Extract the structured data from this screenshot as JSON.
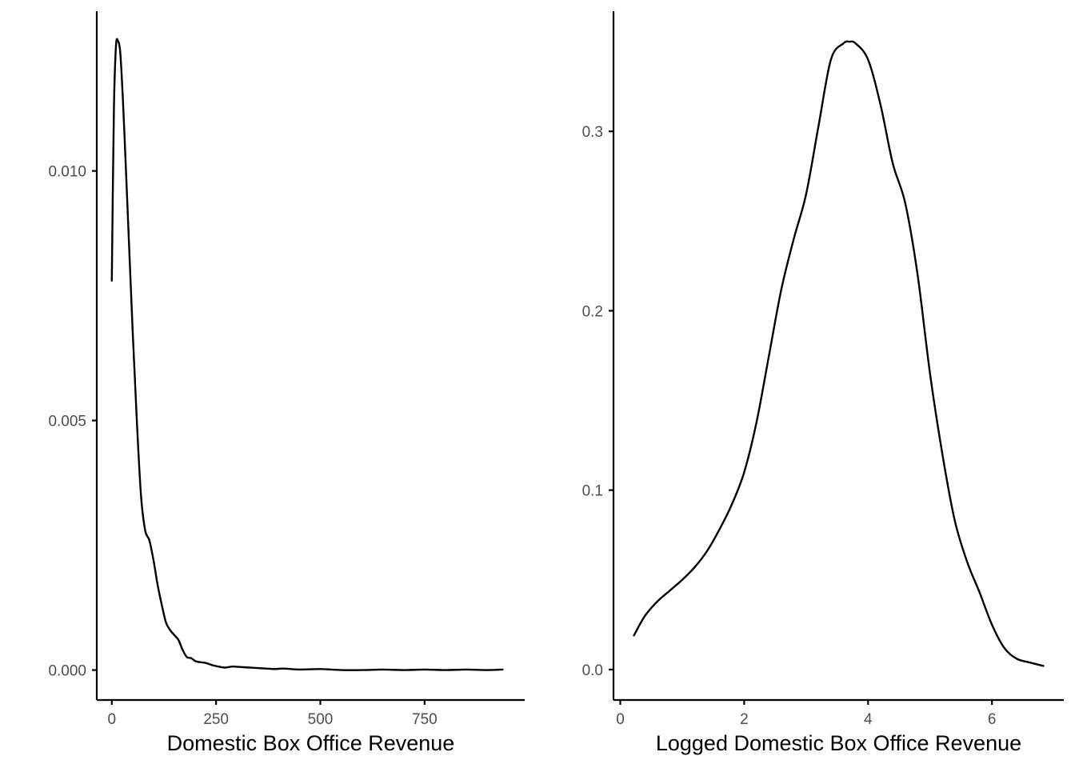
{
  "chart_data": [
    {
      "type": "line",
      "title": "",
      "xlabel": "Domestic Box Office Revenue",
      "ylabel": "",
      "xlim": [
        -36,
        990
      ],
      "ylim": [
        -0.0006,
        0.0132
      ],
      "x_ticks": [
        0,
        250,
        500,
        750
      ],
      "x_tick_labels": [
        "0",
        "250",
        "500",
        "750"
      ],
      "y_ticks": [
        0.0,
        0.005,
        0.01
      ],
      "y_tick_labels": [
        "0.000",
        "0.005",
        "0.010"
      ],
      "grid": false,
      "legend": "none",
      "series": [
        {
          "color": "#000000",
          "x": [
            0,
            5,
            10,
            15,
            20,
            25,
            30,
            40,
            50,
            60,
            70,
            80,
            90,
            100,
            110,
            120,
            130,
            140,
            150,
            160,
            170,
            180,
            190,
            200,
            210,
            220,
            230,
            240,
            250,
            270,
            290,
            310,
            330,
            350,
            370,
            390,
            410,
            430,
            450,
            500,
            550,
            600,
            650,
            700,
            750,
            800,
            850,
            900,
            937
          ],
          "y": [
            0.0078,
            0.0112,
            0.0125,
            0.0126,
            0.0124,
            0.0117,
            0.0108,
            0.0088,
            0.0068,
            0.005,
            0.0035,
            0.0028,
            0.0026,
            0.0022,
            0.0017,
            0.0013,
            0.00095,
            0.0008,
            0.0007,
            0.0006,
            0.0004,
            0.00026,
            0.00024,
            0.00018,
            0.00016,
            0.00015,
            0.00013,
            0.0001,
            8e-05,
            5e-05,
            7e-05,
            6e-05,
            5e-05,
            4e-05,
            3e-05,
            2e-05,
            3e-05,
            2e-05,
            1e-05,
            2e-05,
            0.0,
            0.0,
            1e-05,
            0.0,
            1e-05,
            0.0,
            1e-05,
            0.0,
            1e-05
          ]
        }
      ]
    },
    {
      "type": "line",
      "title": "",
      "xlabel": "Logged Domestic Box Office Revenue",
      "ylabel": "",
      "xlim": [
        -0.11,
        7.16
      ],
      "ylim": [
        -0.017,
        0.367
      ],
      "x_ticks": [
        0,
        2,
        4,
        6
      ],
      "x_tick_labels": [
        "0",
        "2",
        "4",
        "6"
      ],
      "y_ticks": [
        0.0,
        0.1,
        0.2,
        0.3
      ],
      "y_tick_labels": [
        "0.0",
        "0.1",
        "0.2",
        "0.3"
      ],
      "grid": false,
      "legend": "none",
      "series": [
        {
          "color": "#000000",
          "x": [
            0.22,
            0.4,
            0.6,
            0.8,
            1.0,
            1.2,
            1.4,
            1.6,
            1.8,
            2.0,
            2.2,
            2.4,
            2.6,
            2.8,
            3.0,
            3.2,
            3.4,
            3.6,
            3.7,
            3.8,
            4.0,
            4.2,
            4.4,
            4.6,
            4.8,
            5.0,
            5.2,
            5.4,
            5.6,
            5.8,
            6.0,
            6.2,
            6.4,
            6.6,
            6.83
          ],
          "y": [
            0.019,
            0.03,
            0.038,
            0.044,
            0.05,
            0.057,
            0.066,
            0.078,
            0.092,
            0.11,
            0.138,
            0.175,
            0.212,
            0.24,
            0.265,
            0.303,
            0.34,
            0.349,
            0.35,
            0.349,
            0.34,
            0.315,
            0.282,
            0.26,
            0.22,
            0.165,
            0.12,
            0.083,
            0.06,
            0.043,
            0.025,
            0.012,
            0.006,
            0.004,
            0.002
          ]
        }
      ]
    }
  ]
}
